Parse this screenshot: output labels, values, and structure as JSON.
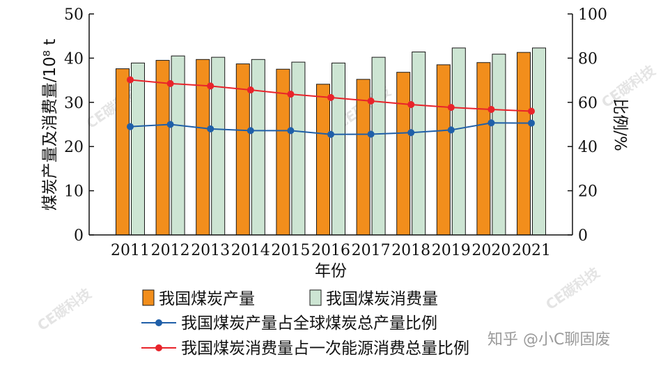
{
  "chart_data": {
    "type": "bar",
    "categories": [
      "2011",
      "2012",
      "2013",
      "2014",
      "2015",
      "2016",
      "2017",
      "2018",
      "2019",
      "2020",
      "2021"
    ],
    "xlabel": "年份",
    "ylabel_left": "煤炭产量及消费量/10⁸ t",
    "ylabel_right": "比例/%",
    "ylim_left": [
      0,
      50
    ],
    "ylim_right": [
      0,
      100
    ],
    "yticks_left": [
      0,
      10,
      20,
      30,
      40,
      50
    ],
    "yticks_right": [
      0,
      20,
      40,
      60,
      80,
      100
    ],
    "series": [
      {
        "name": "我国煤炭产量",
        "kind": "bar",
        "axis": "left",
        "color": "#f28e1c",
        "values": [
          37.6,
          39.5,
          39.7,
          38.7,
          37.5,
          34.1,
          35.2,
          36.8,
          38.5,
          39.0,
          41.3
        ]
      },
      {
        "name": "我国煤炭消费量",
        "kind": "bar",
        "axis": "left",
        "color": "#cde5d3",
        "values": [
          38.9,
          40.5,
          40.2,
          39.7,
          39.1,
          38.9,
          40.2,
          41.4,
          42.3,
          40.9,
          42.3
        ]
      },
      {
        "name": "我国煤炭产量占全球煤炭总产量比例",
        "kind": "line",
        "axis": "right",
        "color": "#1f5fa8",
        "values": [
          49.0,
          50.0,
          48.0,
          47.2,
          47.2,
          45.5,
          45.6,
          46.3,
          47.5,
          50.7,
          50.6
        ]
      },
      {
        "name": "我国煤炭消费量占一次能源消费总量比例",
        "kind": "line",
        "axis": "right",
        "color": "#e8232a",
        "values": [
          70.2,
          68.5,
          67.4,
          65.6,
          63.7,
          62.2,
          60.6,
          59.0,
          57.7,
          56.8,
          56.0
        ]
      }
    ]
  },
  "watermarks": [
    "CE碳科技",
    "CE碳科技",
    "CE碳科技",
    "CE碳科技",
    "CE碳科技"
  ],
  "attribution": "知乎 @小C聊固废"
}
